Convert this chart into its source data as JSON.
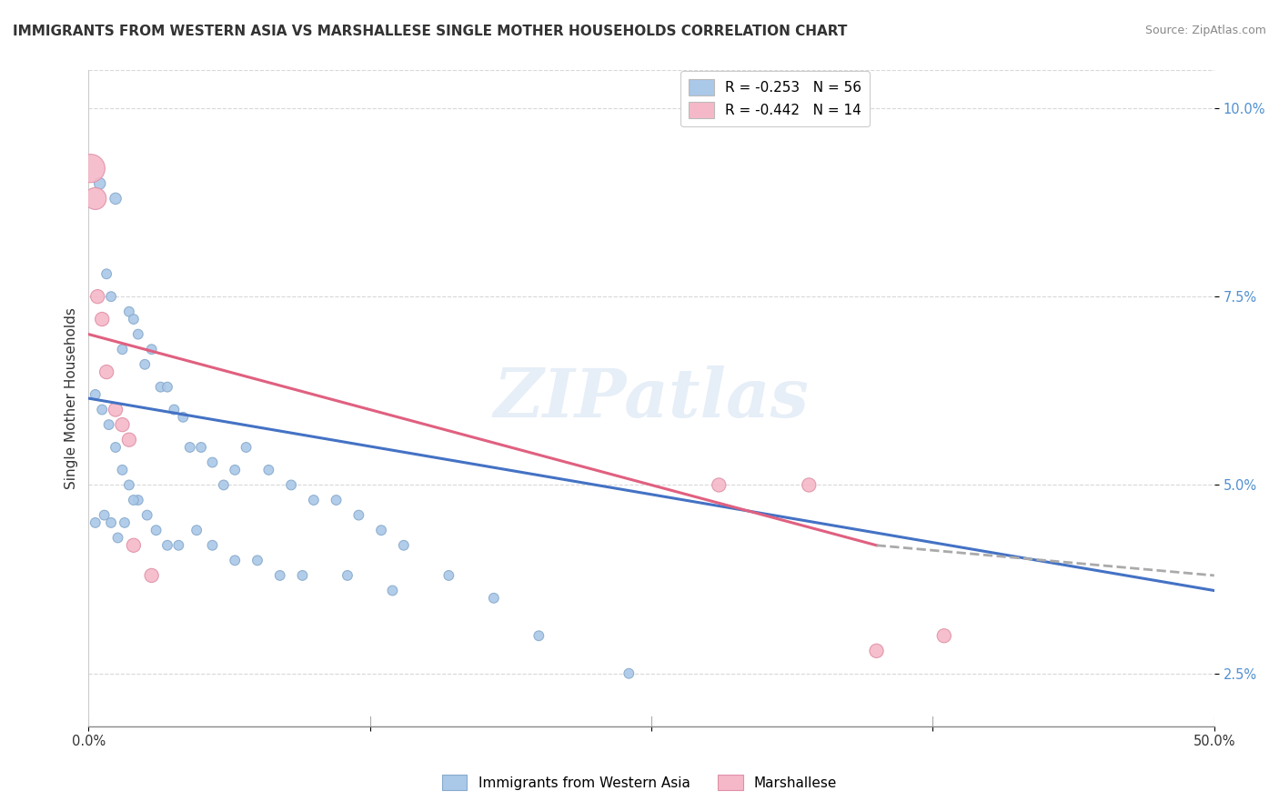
{
  "title": "IMMIGRANTS FROM WESTERN ASIA VS MARSHALLESE SINGLE MOTHER HOUSEHOLDS CORRELATION CHART",
  "source": "Source: ZipAtlas.com",
  "ylabel": "Single Mother Households",
  "watermark": "ZIPatlas",
  "legend": [
    {
      "label": "R = -0.253   N = 56",
      "color": "#aac8e8"
    },
    {
      "label": "R = -0.442   N = 14",
      "color": "#f5b8c8"
    }
  ],
  "blue_scatter": {
    "x": [
      0.005,
      0.012,
      0.003,
      0.008,
      0.01,
      0.018,
      0.015,
      0.022,
      0.025,
      0.02,
      0.028,
      0.032,
      0.035,
      0.038,
      0.042,
      0.045,
      0.05,
      0.055,
      0.06,
      0.065,
      0.07,
      0.08,
      0.09,
      0.1,
      0.11,
      0.12,
      0.13,
      0.14,
      0.16,
      0.18,
      0.006,
      0.009,
      0.012,
      0.015,
      0.018,
      0.022,
      0.026,
      0.03,
      0.035,
      0.04,
      0.048,
      0.055,
      0.065,
      0.075,
      0.085,
      0.095,
      0.115,
      0.135,
      0.2,
      0.24,
      0.003,
      0.007,
      0.01,
      0.013,
      0.016,
      0.02
    ],
    "y": [
      0.09,
      0.088,
      0.062,
      0.078,
      0.075,
      0.073,
      0.068,
      0.07,
      0.066,
      0.072,
      0.068,
      0.063,
      0.063,
      0.06,
      0.059,
      0.055,
      0.055,
      0.053,
      0.05,
      0.052,
      0.055,
      0.052,
      0.05,
      0.048,
      0.048,
      0.046,
      0.044,
      0.042,
      0.038,
      0.035,
      0.06,
      0.058,
      0.055,
      0.052,
      0.05,
      0.048,
      0.046,
      0.044,
      0.042,
      0.042,
      0.044,
      0.042,
      0.04,
      0.04,
      0.038,
      0.038,
      0.038,
      0.036,
      0.03,
      0.025,
      0.045,
      0.046,
      0.045,
      0.043,
      0.045,
      0.048
    ],
    "sizes": [
      80,
      80,
      60,
      60,
      60,
      60,
      60,
      60,
      60,
      60,
      60,
      60,
      60,
      60,
      60,
      60,
      60,
      60,
      60,
      60,
      60,
      60,
      60,
      60,
      60,
      60,
      60,
      60,
      60,
      60,
      60,
      60,
      60,
      60,
      60,
      60,
      60,
      60,
      60,
      60,
      60,
      60,
      60,
      60,
      60,
      60,
      60,
      60,
      60,
      60,
      60,
      60,
      60,
      60,
      60,
      60
    ],
    "color": "#aac8e8",
    "edge_color": "#88aacc"
  },
  "pink_scatter": {
    "x": [
      0.001,
      0.003,
      0.004,
      0.006,
      0.008,
      0.012,
      0.015,
      0.018,
      0.02,
      0.028,
      0.28,
      0.32,
      0.35,
      0.38
    ],
    "y": [
      0.092,
      0.088,
      0.075,
      0.072,
      0.065,
      0.06,
      0.058,
      0.056,
      0.042,
      0.038,
      0.05,
      0.05,
      0.028,
      0.03
    ],
    "sizes": [
      500,
      300,
      120,
      120,
      120,
      120,
      120,
      120,
      120,
      120,
      120,
      120,
      120,
      120
    ],
    "color": "#f5b8c8",
    "edge_color": "#e090a8"
  },
  "blue_line": {
    "x": [
      0.0,
      0.5
    ],
    "y": [
      0.0615,
      0.036
    ]
  },
  "pink_line_solid": {
    "x": [
      0.0,
      0.35
    ],
    "y": [
      0.07,
      0.042
    ]
  },
  "pink_line_dashed": {
    "x": [
      0.35,
      0.5
    ],
    "y": [
      0.042,
      0.038
    ]
  },
  "xlim": [
    0.0,
    0.5
  ],
  "ylim": [
    0.018,
    0.105
  ],
  "yticks": [
    0.025,
    0.05,
    0.075,
    0.1
  ],
  "ytick_labels": [
    "2.5%",
    "5.0%",
    "7.5%",
    "10.0%"
  ],
  "xtick_positions": [
    0.0,
    0.125,
    0.25,
    0.375,
    0.5
  ],
  "xtick_labels": [
    "0.0%",
    "",
    "",
    "",
    "50.0%"
  ],
  "background_color": "#ffffff",
  "title_fontsize": 11,
  "source_fontsize": 9,
  "grid_color": "#d8d8d8"
}
